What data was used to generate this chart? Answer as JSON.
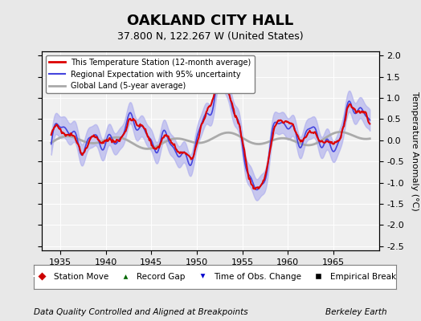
{
  "title": "OAKLAND CITY HALL",
  "subtitle": "37.800 N, 122.267 W (United States)",
  "ylabel": "Temperature Anomaly (°C)",
  "xlabel_bottom": "Data Quality Controlled and Aligned at Breakpoints",
  "xlabel_right": "Berkeley Earth",
  "ylim": [
    -2.6,
    2.1
  ],
  "xlim": [
    1933,
    1970
  ],
  "xticks": [
    1935,
    1940,
    1945,
    1950,
    1955,
    1960,
    1965
  ],
  "yticks": [
    -2.5,
    -2.0,
    -1.5,
    -1.0,
    -0.5,
    0.0,
    0.5,
    1.0,
    1.5,
    2.0
  ],
  "bg_color": "#e8e8e8",
  "plot_bg": "#f0f0f0",
  "regional_color": "#4444dd",
  "regional_fill": "#aaaaee",
  "station_color": "#dd0000",
  "global_color": "#aaaaaa",
  "legend_items": [
    {
      "label": "This Temperature Station (12-month average)",
      "color": "#dd0000",
      "lw": 2
    },
    {
      "label": "Regional Expectation with 95% uncertainty",
      "color": "#4444dd",
      "lw": 1.5
    },
    {
      "label": "Global Land (5-year average)",
      "color": "#aaaaaa",
      "lw": 2
    }
  ],
  "bottom_legend": [
    {
      "label": "Station Move",
      "color": "#cc0000",
      "marker": "D"
    },
    {
      "label": "Record Gap",
      "color": "#006600",
      "marker": "^"
    },
    {
      "label": "Time of Obs. Change",
      "color": "#0000cc",
      "marker": "v"
    },
    {
      "label": "Empirical Break",
      "color": "#000000",
      "marker": "s"
    }
  ]
}
